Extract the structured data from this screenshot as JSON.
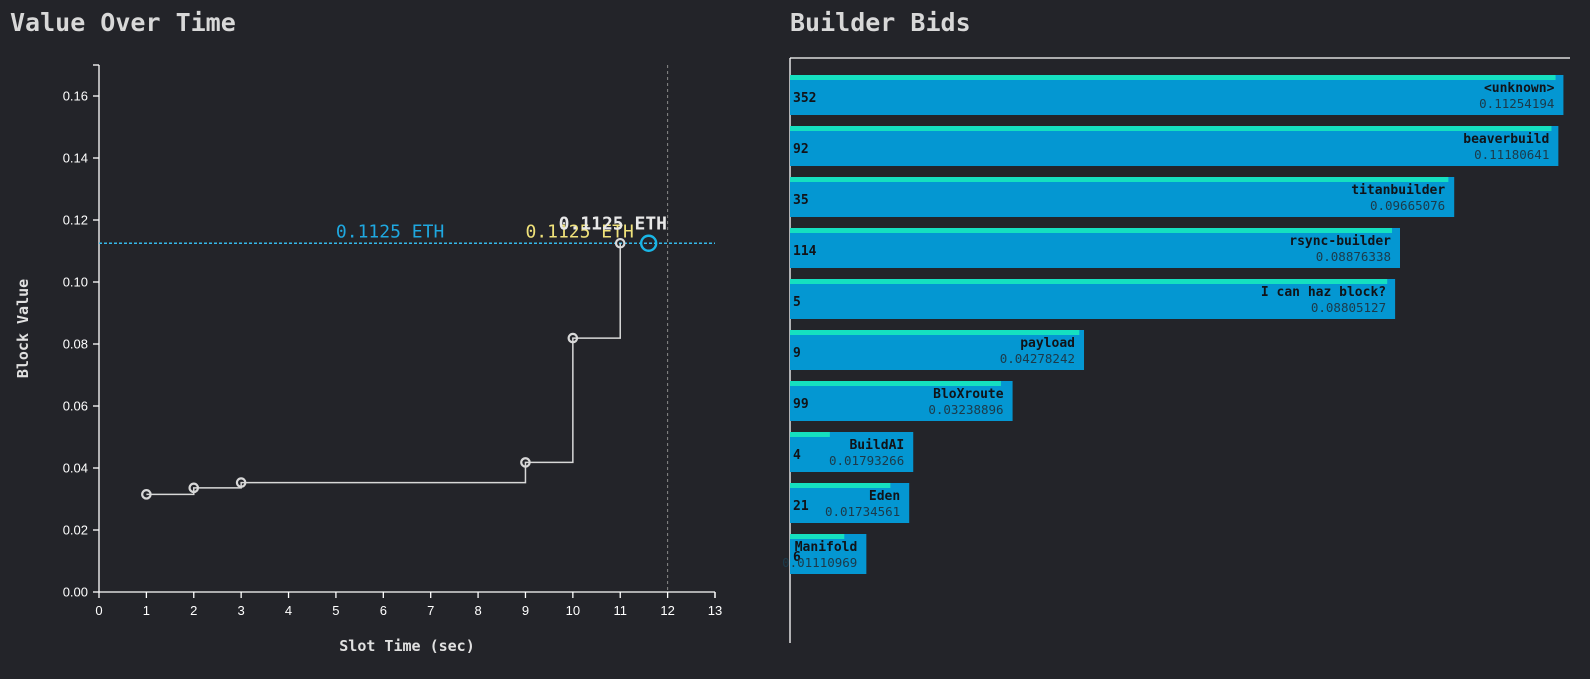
{
  "chart_data": [
    {
      "type": "line",
      "title": "Value Over Time",
      "xlabel": "Slot Time (sec)",
      "ylabel": "Block Value",
      "xlim": [
        0,
        13
      ],
      "ylim": [
        0,
        0.17
      ],
      "x_ticks": [
        0,
        1,
        2,
        3,
        4,
        5,
        6,
        7,
        8,
        9,
        10,
        11,
        12,
        13
      ],
      "y_ticks": [
        0.0,
        0.02,
        0.04,
        0.06,
        0.08,
        0.1,
        0.12,
        0.14,
        0.16
      ],
      "y_tick_labels": [
        "0.00",
        "0.02",
        "0.04",
        "0.06",
        "0.08",
        "0.10",
        "0.12",
        "0.14",
        "0.16"
      ],
      "grid": false,
      "step": true,
      "points": [
        {
          "x": 1,
          "y": 0.0315
        },
        {
          "x": 2,
          "y": 0.0336
        },
        {
          "x": 3,
          "y": 0.0353
        },
        {
          "x": 9,
          "y": 0.0418
        },
        {
          "x": 10,
          "y": 0.0819
        },
        {
          "x": 11,
          "y": 0.1125
        }
      ],
      "current_point": {
        "x": 11.6,
        "y": 0.1125
      },
      "vertical_marker_x": 12,
      "horizontal_marker_y": 0.1125,
      "annotations": [
        {
          "text": "0.1125 ETH",
          "x": 5,
          "y": 0.1125,
          "color": "#1fa8e0"
        },
        {
          "text": "0.1125 ETH",
          "x": 9,
          "y": 0.1125,
          "color": "#f0e27a"
        },
        {
          "text": "0.1125 ETH",
          "x": 9.7,
          "y": 0.1125,
          "color": "#e8e8e8"
        }
      ],
      "colors": {
        "line": "#d8d8d8",
        "marker": "#1fa8e0",
        "axis": "#ffffff"
      }
    },
    {
      "type": "bar",
      "orientation": "horizontal",
      "title": "Builder Bids",
      "xlim": [
        0,
        0.1135
      ],
      "bars": [
        {
          "name": "<unknown>",
          "count": "352",
          "value": 0.11254194,
          "value_label": "0.11254194",
          "accent": 0.1114
        },
        {
          "name": "beaverbuild",
          "count": "92",
          "value": 0.11180641,
          "value_label": "0.11180641",
          "accent": 0.1108
        },
        {
          "name": "titanbuilder",
          "count": "35",
          "value": 0.09665076,
          "value_label": "0.09665076",
          "accent": 0.0958
        },
        {
          "name": "rsync-builder",
          "count": "114",
          "value": 0.08876338,
          "value_label": "0.08876338",
          "accent": 0.0876
        },
        {
          "name": "I can haz block?",
          "count": "5",
          "value": 0.08805127,
          "value_label": "0.08805127",
          "accent": 0.0869
        },
        {
          "name": "payload",
          "count": "9",
          "value": 0.04278242,
          "value_label": "0.04278242",
          "accent": 0.0421
        },
        {
          "name": "BloXroute",
          "count": "99",
          "value": 0.03238896,
          "value_label": "0.03238896",
          "accent": 0.0307
        },
        {
          "name": "BuildAI",
          "count": "4",
          "value": 0.01793266,
          "value_label": "0.01793266",
          "accent": 0.0058
        },
        {
          "name": "Eden",
          "count": "21",
          "value": 0.01734561,
          "value_label": "0.01734561",
          "accent": 0.0146
        },
        {
          "name": "Manifold",
          "count": "6",
          "value": 0.01110969,
          "value_label": "0.01110969",
          "accent": 0.0079
        }
      ],
      "colors": {
        "bar": "#0497d2",
        "accent": "#15e0c0",
        "axis": "#ffffff"
      }
    }
  ]
}
